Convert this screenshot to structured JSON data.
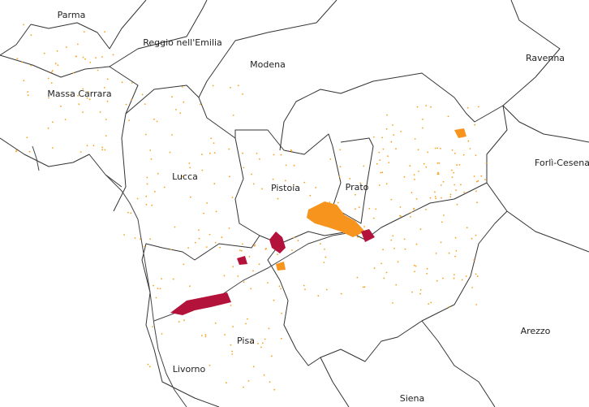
{
  "map": {
    "labels": [
      "Parma",
      "Reggio nell'Emilia",
      "Modena",
      "Ravenna",
      "Massa Carrara",
      "Forlì-Cesena",
      "Lucca",
      "Pistoia",
      "Prato",
      "Pisa",
      "Arezzo",
      "Livorno",
      "Siena"
    ]
  }
}
